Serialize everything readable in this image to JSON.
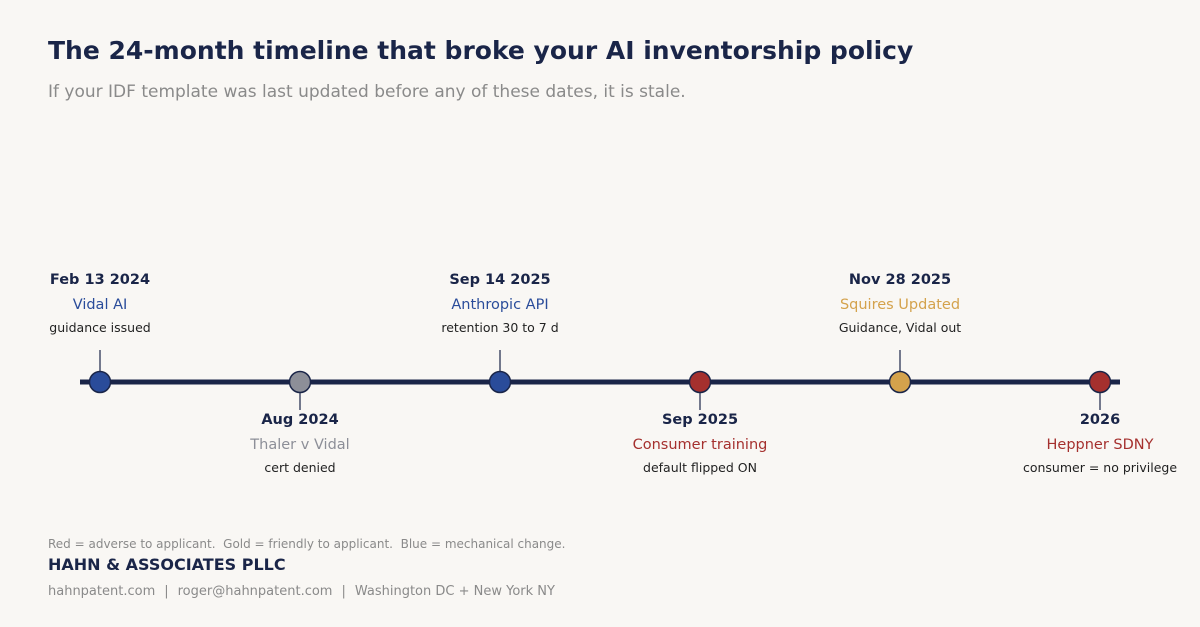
{
  "header": {
    "title": "The 24-month timeline that broke your AI inventorship policy",
    "subtitle": "If your IDF template was last updated before any of these dates, it is stale."
  },
  "chart_data": {
    "type": "timeline",
    "events": [
      {
        "date": "Feb 13 2024",
        "name": "Vidal AI",
        "detail": "guidance issued",
        "category": "blue",
        "side": "above"
      },
      {
        "date": "Aug 2024",
        "name": "Thaler v Vidal",
        "detail": "cert denied",
        "category": "gray",
        "side": "below"
      },
      {
        "date": "Sep 14 2025",
        "name": "Anthropic API",
        "detail": "retention 30 to 7 d",
        "category": "blue",
        "side": "above"
      },
      {
        "date": "Sep 2025",
        "name": "Consumer training",
        "detail": "default flipped ON",
        "category": "red",
        "side": "below"
      },
      {
        "date": "Nov 28 2025",
        "name": "Squires Updated",
        "detail": "Guidance, Vidal out",
        "category": "gold",
        "side": "above"
      },
      {
        "date": "2026",
        "name": "Heppner SDNY",
        "detail": "consumer = no privilege",
        "category": "red",
        "side": "below"
      }
    ],
    "colors": {
      "blue": "#2a4c9a",
      "gray": "#8d8f98",
      "red": "#a5302e",
      "gold": "#d4a24c",
      "axis": "#1a2548",
      "date_text": "#1a2548",
      "detail_text": "#222222"
    }
  },
  "footer": {
    "legend": "Red = adverse to applicant.  Gold = friendly to applicant.  Blue = mechanical change.",
    "firm": "HAHN & ASSOCIATES PLLC",
    "website": "hahnpatent.com",
    "email": "roger@hahnpatent.com",
    "location": "Washington DC + New York NY",
    "separator": "|"
  }
}
